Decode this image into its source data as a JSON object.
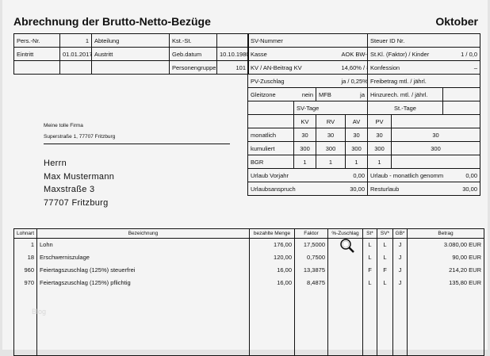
{
  "header": {
    "title": "Abrechnung der Brutto-Netto-Bezüge",
    "month": "Oktober"
  },
  "personal": [
    [
      {
        "l": "Pers.-Nr.",
        "v": "1"
      },
      {
        "l": "Abteilung",
        "v": ""
      },
      {
        "l": "Kst.-St.",
        "v": ""
      }
    ],
    [
      {
        "l": "Eintritt",
        "v": "01.01.2017"
      },
      {
        "l": "Austritt",
        "v": ""
      },
      {
        "l": "Geb.datum",
        "v": "10.10.1980"
      }
    ],
    [
      {
        "l": "",
        "v": ""
      },
      {
        "l": "",
        "v": ""
      },
      {
        "l": "Personengruppe",
        "v": "101"
      }
    ]
  ],
  "insurance": [
    [
      {
        "l": "SV-Nummer",
        "v": ""
      },
      {
        "l": "Steuer ID Nr.",
        "v": ""
      }
    ],
    [
      {
        "l": "Kasse",
        "v": "AOK BW-HV"
      },
      {
        "l": "St.Kl. (Faktor) / Kinder",
        "v": "1 / 0,0"
      }
    ],
    [
      {
        "l": "KV / AN-Beitrag KV",
        "v": "14,60% / 8,30%"
      },
      {
        "l": "Konfession",
        "v": "–"
      }
    ],
    [
      {
        "l": "PV-Zuschlag",
        "v": "ja / 0,25%"
      },
      {
        "l": "Freibetrag mtl. / jährl.",
        "v": ""
      }
    ]
  ],
  "gleitzone": {
    "label": "Gleitzone",
    "value": "nein",
    "mfb_label": "MFB",
    "mfb_value": "ja",
    "hinzu_label": "Hinzurech. mtl. / jährl.",
    "hinzu_value": ""
  },
  "days": {
    "sv_header": "SV-Tage",
    "st_header": "St.-Tage",
    "cols": [
      "KV",
      "RV",
      "AV",
      "PV"
    ],
    "rows": [
      {
        "label": "monatlich",
        "values": [
          "30",
          "30",
          "30",
          "30"
        ],
        "st": "30"
      },
      {
        "label": "kumuliert",
        "values": [
          "300",
          "300",
          "300",
          "300"
        ],
        "st": "300"
      },
      {
        "label": "BGR",
        "values": [
          "1",
          "1",
          "1",
          "1"
        ],
        "st": ""
      }
    ]
  },
  "vacation": [
    [
      {
        "l": "Urlaub Vorjahr",
        "v": "0,00"
      },
      {
        "l": "Urlaub - monatlich genommen",
        "v": "0,00"
      }
    ],
    [
      {
        "l": "Urlaubsanspruch",
        "v": "30,00"
      },
      {
        "l": "Resturlaub",
        "v": "30,00"
      }
    ]
  ],
  "sender": {
    "name": "Meine tolle Firma",
    "address": "Superstraße 1, 77707 Fritzburg"
  },
  "recipient": {
    "salutation": "Herrn",
    "name": "Max Mustermann",
    "street": "Maxstraße 3",
    "city": "77707 Fritzburg"
  },
  "items": {
    "headers": [
      "Lohnart",
      "Bezeichnung",
      "bezahlte Menge",
      "Faktor",
      "%-Zuschlag",
      "St*",
      "SV*",
      "GB*",
      "Betrag"
    ],
    "rows": [
      [
        "1",
        "Lohn",
        "176,00",
        "17,5000",
        "",
        "L",
        "L",
        "J",
        "3.080,00 EUR"
      ],
      [
        "18",
        "Erschwerniszulage",
        "120,00",
        "0,7500",
        "",
        "L",
        "L",
        "J",
        "90,00 EUR"
      ],
      [
        "960",
        "Feiertagszuschlag (125%) steuerfrei",
        "16,00",
        "13,3875",
        "",
        "F",
        "F",
        "J",
        "214,20 EUR"
      ],
      [
        "970",
        "Feiertagszuschlag (125%) pflichtig",
        "16,00",
        "8,4875",
        "",
        "L",
        "L",
        "J",
        "135,80 EUR"
      ]
    ]
  },
  "watermark": "Blog",
  "icons": {
    "zoom": "magnifier-icon"
  }
}
